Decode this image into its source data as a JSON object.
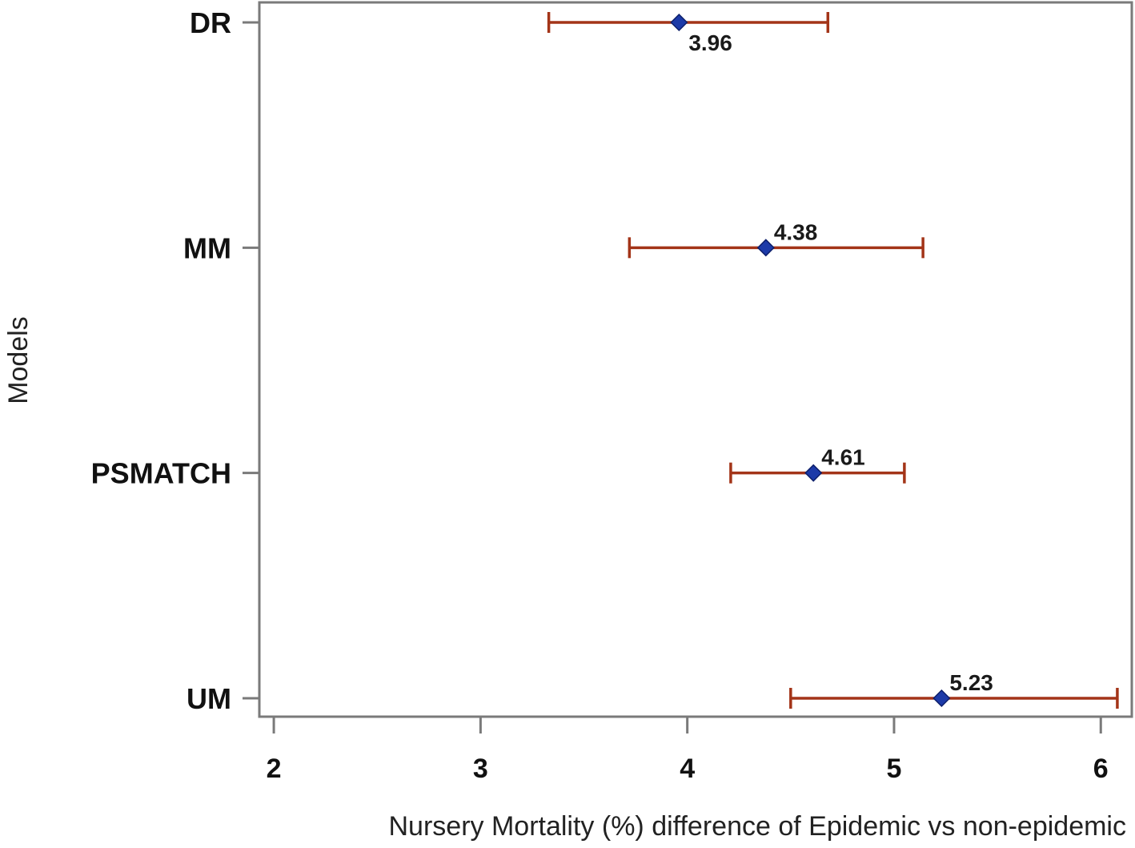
{
  "chart_data": {
    "type": "forest-plot",
    "title": "",
    "xlabel": "Nursery Mortality (%) difference of Epidemic vs non-epidemic",
    "ylabel": "Models",
    "xlim": [
      1.93,
      6.15
    ],
    "x_ticks": [
      2,
      3,
      4,
      5,
      6
    ],
    "x_tick_labels": [
      "2",
      "3",
      "4",
      "5",
      "6"
    ],
    "categories": [
      "DR",
      "MM",
      "PSMATCH",
      "UM"
    ],
    "estimates": [
      3.96,
      4.38,
      4.61,
      5.23
    ],
    "estimate_labels": [
      "3.96",
      "4.38",
      "4.61",
      "5.23"
    ],
    "ci_lower": [
      3.33,
      3.72,
      4.21,
      4.5
    ],
    "ci_upper": [
      4.68,
      5.14,
      5.05,
      6.08
    ],
    "grid": false,
    "colors": {
      "point": "#1c3aa8",
      "point_edge": "#0d1f6b",
      "error_bar": "#a33418",
      "axis": "#7a7a7a",
      "text": "#111111"
    }
  }
}
